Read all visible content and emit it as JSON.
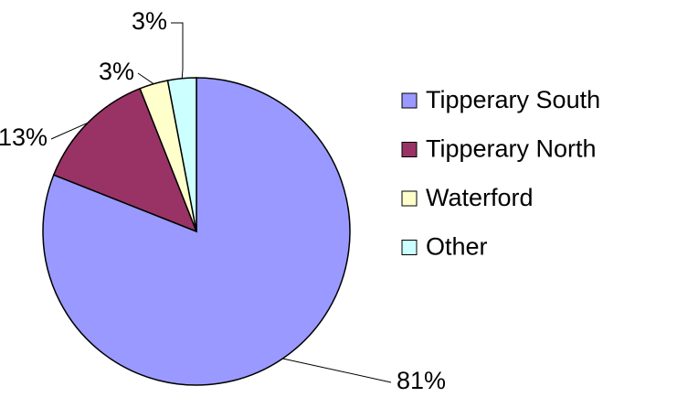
{
  "chart_data": {
    "type": "pie",
    "categories": [
      "Tipperary South",
      "Tipperary North",
      "Waterford",
      "Other"
    ],
    "values": [
      81,
      13,
      3,
      3
    ],
    "value_labels": [
      "81%",
      "13%",
      "3%",
      "3%"
    ],
    "colors": [
      "#9999ff",
      "#993366",
      "#ffffcc",
      "#ccffff"
    ],
    "legend": "right"
  }
}
